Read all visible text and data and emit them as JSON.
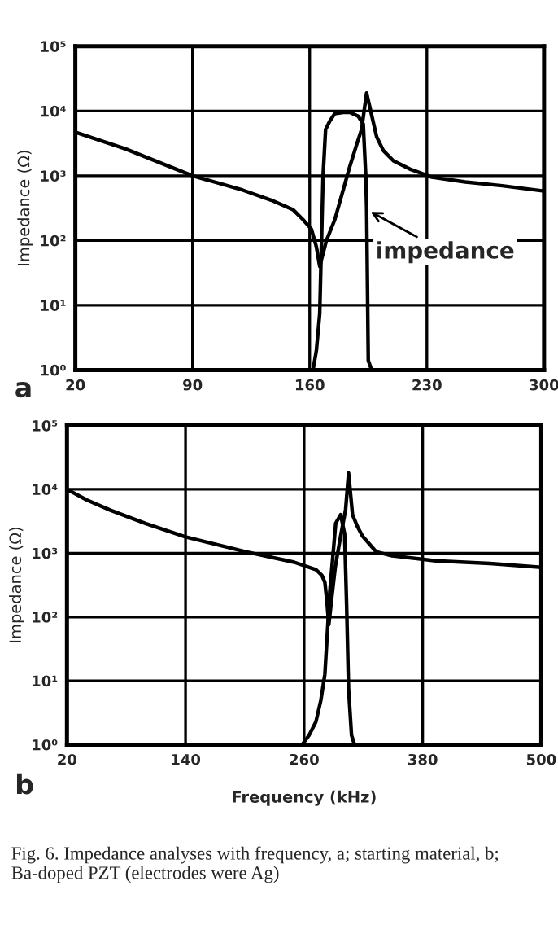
{
  "chart_data": [
    {
      "type": "line",
      "ylabel": "Impedance (Ω)",
      "log": "y",
      "grid": true,
      "marker": "none",
      "line_style": "solid",
      "xlim": [
        20,
        300
      ],
      "xticks": [
        20,
        90,
        160,
        230,
        300
      ],
      "ylim": [
        1,
        100000
      ],
      "yticks": [
        {
          "value": 1,
          "label": "10⁰"
        },
        {
          "value": 10,
          "label": "10¹"
        },
        {
          "value": 100,
          "label": "10²"
        },
        {
          "value": 1000,
          "label": "10³"
        },
        {
          "value": 10000,
          "label": "10⁴"
        },
        {
          "value": 100000,
          "label": "10⁵"
        }
      ],
      "series": [
        {
          "color": "#000000",
          "x": [
            20,
            50,
            90,
            120,
            137,
            150,
            156,
            161,
            164,
            166,
            170,
            175,
            180,
            184,
            188,
            191,
            194,
            197.5,
            200,
            204,
            210,
            220,
            233,
            253,
            275,
            300
          ],
          "values": [
            4700,
            2600,
            1000,
            600,
            420,
            300,
            210,
            150,
            80,
            40,
            100,
            210,
            600,
            1400,
            3000,
            5200,
            19000,
            7600,
            4000,
            2450,
            1700,
            1260,
            950,
            800,
            700,
            580
          ]
        },
        {
          "color": "#000000",
          "x": [
            162,
            164,
            166,
            168,
            169.5,
            172,
            175,
            180,
            184,
            189,
            192,
            193.5,
            194,
            195,
            197
          ],
          "values": [
            1,
            2,
            7.4,
            1000,
            5200,
            7000,
            9100,
            9500,
            9500,
            8300,
            6300,
            1000,
            316,
            1.4,
            1
          ]
        }
      ],
      "annotations": [
        "a",
        {
          "text": "impedance",
          "x": 194,
          "y": 300
        }
      ]
    },
    {
      "type": "line",
      "ylabel": "Impedance (Ω)",
      "xlabel": "Frequency (kHz)",
      "log": "y",
      "grid": true,
      "marker": "none",
      "line_style": "solid",
      "xlim": [
        20,
        500
      ],
      "xticks": [
        20,
        140,
        260,
        380,
        500
      ],
      "ylim": [
        1,
        100000
      ],
      "yticks": [
        {
          "value": 1,
          "label": "10⁰"
        },
        {
          "value": 10,
          "label": "10¹"
        },
        {
          "value": 100,
          "label": "10²"
        },
        {
          "value": 1000,
          "label": "10³"
        },
        {
          "value": 10000,
          "label": "10⁴"
        },
        {
          "value": 100000,
          "label": "10⁵"
        }
      ],
      "series": [
        {
          "color": "#000000",
          "x": [
            20,
            40,
            64,
            100,
            140,
            201,
            250,
            272,
            278,
            281,
            283,
            285,
            288,
            291.5,
            297,
            302,
            305,
            309,
            314,
            319,
            333,
            349,
            393,
            448,
            500
          ],
          "values": [
            10000,
            6800,
            4700,
            2900,
            1800,
            1050,
            720,
            550,
            450,
            350,
            180,
            76,
            200,
            600,
            1860,
            4800,
            18000,
            4000,
            2600,
            1860,
            1050,
            910,
            760,
            690,
            600
          ]
        },
        {
          "color": "#000000",
          "x": [
            258,
            265,
            272,
            277,
            281,
            286,
            292,
            297,
            301,
            303,
            305,
            308,
            311
          ],
          "values": [
            1,
            1.4,
            2.3,
            5,
            12.6,
            250,
            2950,
            4000,
            2000,
            160,
            7.4,
            1.4,
            1
          ]
        }
      ],
      "annotations": [
        "b",
        "Fig. 6. Impedance analyses with frequency, a; starting material, b; Ba-doped PZT (electrodes were Ag)"
      ]
    }
  ]
}
